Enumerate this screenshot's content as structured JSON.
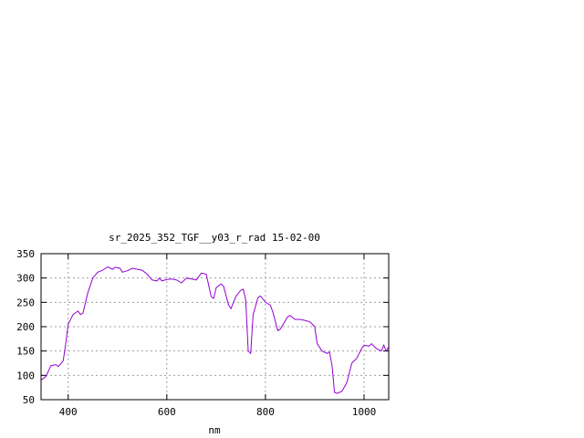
{
  "chart_data": {
    "type": "line",
    "title": "sr_2025_352_TGF__y03_r_rad 15-02-00",
    "xlabel": "nm",
    "ylabel": "",
    "xlim": [
      345,
      1050
    ],
    "ylim": [
      50,
      350
    ],
    "xticks": [
      400,
      600,
      800,
      1000
    ],
    "yticks": [
      50,
      100,
      150,
      200,
      250,
      300,
      350
    ],
    "grid": true,
    "line_color": "#9400d3",
    "series": [
      {
        "x": [
          345,
          355,
          365,
          375,
          380,
          390,
          395,
          400,
          410,
          420,
          425,
          430,
          440,
          450,
          460,
          470,
          480,
          490,
          495,
          505,
          510,
          520,
          530,
          540,
          550,
          560,
          570,
          580,
          585,
          590,
          600,
          610,
          620,
          630,
          640,
          650,
          660,
          670,
          680,
          690,
          695,
          700,
          710,
          715,
          725,
          730,
          740,
          750,
          755,
          760,
          765,
          770,
          775,
          785,
          790,
          800,
          810,
          815,
          825,
          830,
          845,
          850,
          860,
          870,
          880,
          890,
          900,
          905,
          915,
          925,
          930,
          935,
          940,
          945,
          955,
          965,
          975,
          985,
          995,
          1000,
          1010,
          1015,
          1025,
          1035,
          1040,
          1045,
          1050
        ],
        "y": [
          90,
          98,
          120,
          122,
          118,
          130,
          165,
          205,
          225,
          232,
          225,
          228,
          270,
          300,
          312,
          316,
          323,
          318,
          322,
          320,
          312,
          315,
          320,
          318,
          316,
          308,
          296,
          294,
          300,
          294,
          297,
          298,
          296,
          290,
          300,
          298,
          296,
          310,
          308,
          262,
          258,
          280,
          288,
          283,
          245,
          237,
          262,
          275,
          277,
          255,
          150,
          145,
          225,
          260,
          263,
          250,
          244,
          230,
          192,
          195,
          220,
          223,
          215,
          215,
          213,
          210,
          200,
          165,
          150,
          145,
          148,
          120,
          65,
          63,
          67,
          85,
          125,
          135,
          155,
          162,
          160,
          165,
          155,
          150,
          162,
          150,
          158
        ]
      }
    ]
  }
}
